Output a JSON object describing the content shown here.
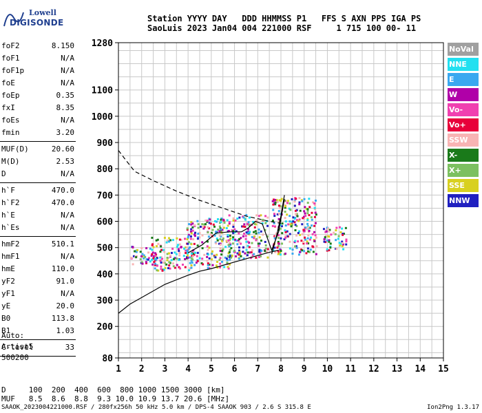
{
  "logo": {
    "line1": "Lowell",
    "line2": "DIGISONDE"
  },
  "header": {
    "line1": "Station YYYY DAY   DDD HHMMSS P1   FFS S AXN PPS IGA PS",
    "line2": "SaoLuis 2023 Jan04 004 221000 RSF     1 715 100 00- 11"
  },
  "params": [
    {
      "name": "foF2",
      "value": "8.150"
    },
    {
      "name": "foF1",
      "value": "N/A"
    },
    {
      "name": "foF1p",
      "value": "N/A"
    },
    {
      "name": "foE",
      "value": "N/A"
    },
    {
      "name": "foEp",
      "value": "0.35"
    },
    {
      "name": "fxI",
      "value": "8.35"
    },
    {
      "name": "foEs",
      "value": "N/A"
    },
    {
      "name": "fmin",
      "value": "3.20"
    },
    {
      "sep": true
    },
    {
      "name": "MUF(D)",
      "value": "20.60"
    },
    {
      "name": "M(D)",
      "value": "2.53"
    },
    {
      "name": "D",
      "value": "N/A"
    },
    {
      "sep": true
    },
    {
      "name": "h`F",
      "value": "470.0"
    },
    {
      "name": "h`F2",
      "value": "470.0"
    },
    {
      "name": "h`E",
      "value": "N/A"
    },
    {
      "name": "h`Es",
      "value": "N/A"
    },
    {
      "sep": true
    },
    {
      "name": "hmF2",
      "value": "510.1"
    },
    {
      "name": "hmF1",
      "value": "N/A"
    },
    {
      "name": "hmE",
      "value": "110.0"
    },
    {
      "name": "yF2",
      "value": "91.0"
    },
    {
      "name": "yF1",
      "value": "N/A"
    },
    {
      "name": "yE",
      "value": "20.0"
    },
    {
      "name": "B0",
      "value": "113.8"
    },
    {
      "name": "B1",
      "value": "1.03"
    },
    {
      "sep": true
    },
    {
      "name": "C-level",
      "value": "33"
    },
    {
      "sep": true
    }
  ],
  "auto": {
    "line1": "Auto:",
    "line2": "Artist5",
    "line3": "500200"
  },
  "legend": [
    {
      "label": "NoVal",
      "color": "#a0a0a0"
    },
    {
      "label": "NNE",
      "color": "#22e0f0"
    },
    {
      "label": "E",
      "color": "#3aa8f0"
    },
    {
      "label": "W",
      "color": "#b000a8"
    },
    {
      "label": "Vo-",
      "color": "#f040b0"
    },
    {
      "label": "Vo+",
      "color": "#e8003a"
    },
    {
      "label": "SSW",
      "color": "#f8b4b4"
    },
    {
      "label": "X-",
      "color": "#1a7a1a"
    },
    {
      "label": "X+",
      "color": "#7cc060"
    },
    {
      "label": "SSE",
      "color": "#d8d020"
    },
    {
      "label": "NNW",
      "color": "#2020c0"
    }
  ],
  "footer": {
    "line1": "D     100  200  400  600  800 1000 1500 3000 [km]",
    "line2": "MUF   8.5  8.6  8.8  9.3 10.0 10.9 13.7 20.6 [MHz]",
    "line3": "SAAOK_2023004221000.RSF / 280fx256h 50 kHz 5.0 km / DPS-4 SAAOK 903 / 2.6 S 315.8 E",
    "version": "Ion2Png 1.3.17"
  },
  "chart_data": {
    "type": "scatter",
    "xlabel": "",
    "ylabel": "",
    "xlim": [
      1,
      15
    ],
    "ylim": [
      80,
      1280
    ],
    "x_ticks": [
      1,
      2,
      3,
      4,
      5,
      6,
      7,
      8,
      9,
      10,
      11,
      12,
      13,
      14,
      15
    ],
    "y_ticks": [
      80,
      200,
      300,
      400,
      500,
      600,
      700,
      800,
      900,
      1000,
      1100,
      1280
    ],
    "grid": true,
    "series": [
      {
        "type": "line",
        "style": "dashed",
        "x": [
          1.0,
          1.3,
          1.7,
          2.5,
          3.5,
          4.5,
          5.5,
          6.5,
          7.5,
          8.0
        ],
        "y": [
          870,
          835,
          790,
          755,
          715,
          680,
          650,
          620,
          600,
          592
        ]
      },
      {
        "type": "line",
        "style": "solid",
        "x": [
          1.0,
          1.5,
          2.0,
          3.0,
          4.0,
          4.5,
          5.0,
          6.0,
          7.0,
          7.5,
          7.9
        ],
        "y": [
          250,
          285,
          310,
          360,
          395,
          410,
          420,
          445,
          470,
          482,
          490
        ]
      },
      {
        "type": "line",
        "style": "solid",
        "x": [
          4.0,
          4.6,
          5.2,
          5.8,
          6.3,
          6.6,
          6.9,
          7.2,
          7.6,
          7.9,
          8.15
        ],
        "y": [
          480,
          510,
          555,
          560,
          560,
          575,
          600,
          590,
          490,
          560,
          685
        ]
      },
      {
        "type": "line",
        "style": "solid",
        "x": [
          7.6,
          7.8,
          8.0,
          8.15
        ],
        "y": [
          475,
          540,
          620,
          700
        ]
      }
    ],
    "echo_regions": [
      {
        "x": [
          1.5,
          2.5
        ],
        "y": [
          430,
          520
        ]
      },
      {
        "x": [
          2.4,
          4.0
        ],
        "y": [
          400,
          560
        ]
      },
      {
        "x": [
          3.9,
          5.8
        ],
        "y": [
          400,
          640
        ]
      },
      {
        "x": [
          5.7,
          7.4
        ],
        "y": [
          440,
          650
        ]
      },
      {
        "x": [
          7.6,
          9.5
        ],
        "y": [
          450,
          720
        ]
      },
      {
        "x": [
          9.8,
          10.8
        ],
        "y": [
          480,
          600
        ]
      }
    ]
  }
}
